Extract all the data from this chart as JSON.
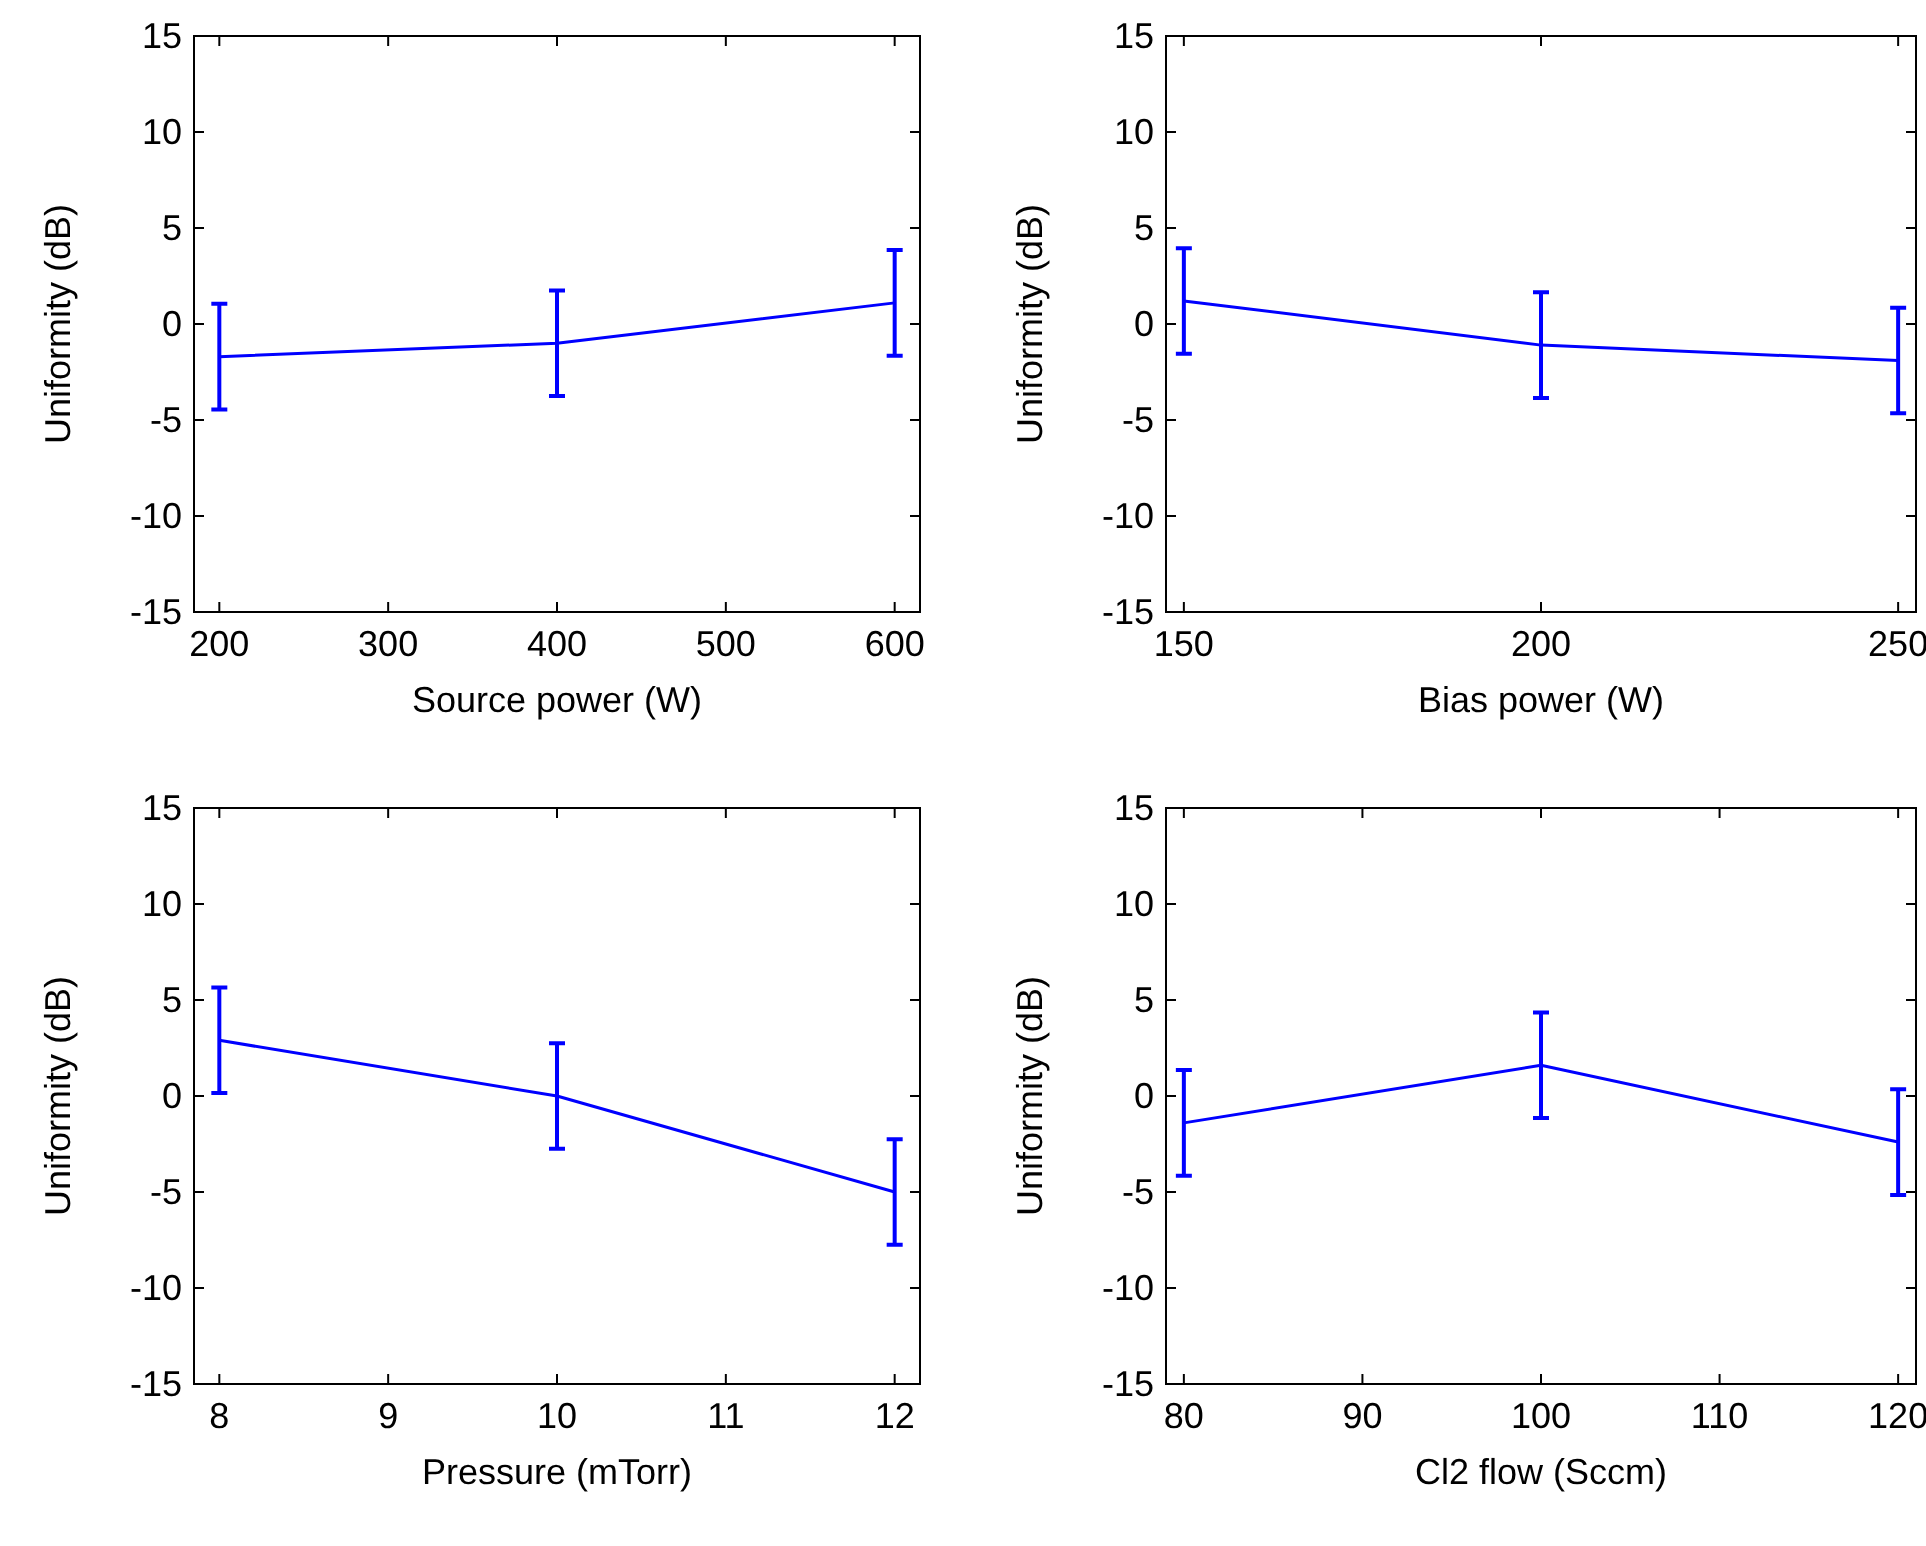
{
  "chart_data": [
    {
      "type": "line",
      "xlabel": "Source power (W)",
      "ylabel": "Uniformity (dB)",
      "x": [
        200,
        400,
        600
      ],
      "values": [
        -1.7,
        -1.0,
        1.1
      ],
      "errors": [
        2.75,
        2.75,
        2.75
      ],
      "color": "#0000ff",
      "xlim": [
        185,
        615
      ],
      "xticks": [
        200,
        300,
        400,
        500,
        600
      ],
      "ylim": [
        -15,
        15
      ],
      "yticks": [
        -15,
        -10,
        -5,
        0,
        5,
        10,
        15
      ],
      "grid": false,
      "marker": "none"
    },
    {
      "type": "line",
      "xlabel": "Bias power (W)",
      "ylabel": "Uniformity (dB)",
      "x": [
        150,
        200,
        250
      ],
      "values": [
        1.2,
        -1.1,
        -1.9
      ],
      "errors": [
        2.75,
        2.75,
        2.75
      ],
      "color": "#0000ff",
      "xlim": [
        147.5,
        252.5
      ],
      "xticks": [
        150,
        200,
        250
      ],
      "ylim": [
        -15,
        15
      ],
      "yticks": [
        -15,
        -10,
        -5,
        0,
        5,
        10,
        15
      ],
      "grid": false,
      "marker": "none"
    },
    {
      "type": "line",
      "xlabel": "Pressure (mTorr)",
      "ylabel": "Uniformity (dB)",
      "x": [
        8,
        10,
        12
      ],
      "values": [
        2.9,
        0,
        -5.0
      ],
      "errors": [
        2.75,
        2.75,
        2.75
      ],
      "color": "#0000ff",
      "xlim": [
        7.85,
        12.15
      ],
      "xticks": [
        8,
        9,
        10,
        11,
        12
      ],
      "ylim": [
        -15,
        15
      ],
      "yticks": [
        -15,
        -10,
        -5,
        0,
        5,
        10,
        15
      ],
      "grid": false,
      "marker": "none"
    },
    {
      "type": "line",
      "xlabel": "Cl2 flow (Sccm)",
      "ylabel": "Uniformity (dB)",
      "x": [
        80,
        100,
        120
      ],
      "values": [
        -1.4,
        1.6,
        -2.4
      ],
      "errors": [
        2.75,
        2.75,
        2.75
      ],
      "color": "#0000ff",
      "xlim": [
        79,
        121
      ],
      "xticks": [
        80,
        90,
        100,
        110,
        120
      ],
      "ylim": [
        -15,
        15
      ],
      "yticks": [
        -15,
        -10,
        -5,
        0,
        5,
        10,
        15
      ],
      "grid": false,
      "marker": "none"
    }
  ]
}
